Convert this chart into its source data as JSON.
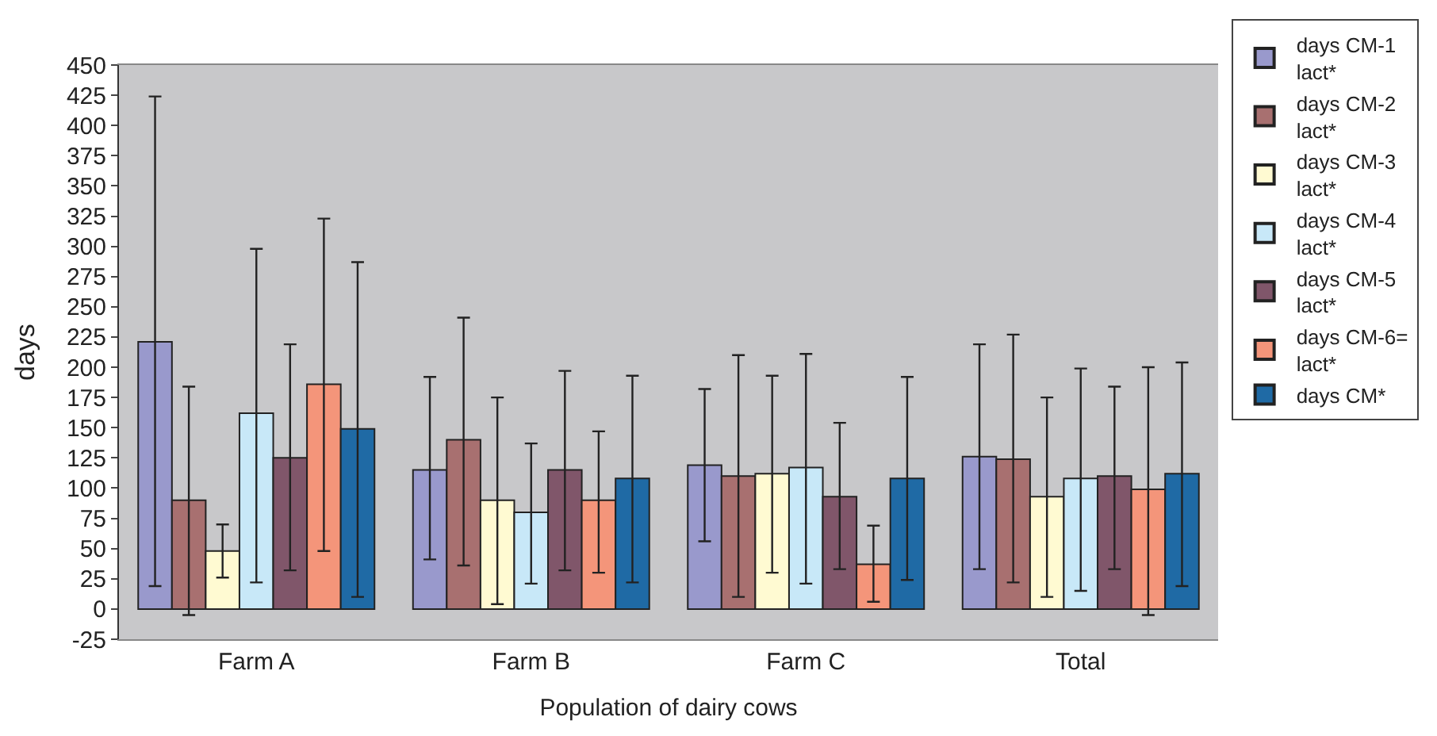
{
  "chart_data": {
    "type": "bar",
    "xlabel": "Population of dairy cows",
    "ylabel": "days",
    "categories": [
      "Farm A",
      "Farm B",
      "Farm C",
      "Total"
    ],
    "ylim": [
      -25,
      450
    ],
    "yticks": [
      -25,
      0,
      25,
      50,
      75,
      100,
      125,
      150,
      175,
      200,
      225,
      250,
      275,
      300,
      325,
      350,
      375,
      400,
      425,
      450
    ],
    "grid": false,
    "legend": "right",
    "series": [
      {
        "name": "days CM-1 lact*",
        "color": "#9999cc",
        "values": [
          221,
          115,
          119,
          126
        ],
        "errors": [
          [
            19,
            424
          ],
          [
            41,
            192
          ],
          [
            56,
            182
          ],
          [
            33,
            219
          ]
        ]
      },
      {
        "name": "days CM-2 lact*",
        "color": "#a87070",
        "values": [
          90,
          140,
          110,
          124
        ],
        "errors": [
          [
            -5,
            184
          ],
          [
            36,
            241
          ],
          [
            10,
            210
          ],
          [
            22,
            227
          ]
        ]
      },
      {
        "name": "days CM-3 lact*",
        "color": "#fffad2",
        "values": [
          48,
          90,
          112,
          93
        ],
        "errors": [
          [
            26,
            70
          ],
          [
            4,
            175
          ],
          [
            30,
            193
          ],
          [
            10,
            175
          ]
        ]
      },
      {
        "name": "days CM-4 lact*",
        "color": "#c8e8f8",
        "values": [
          162,
          80,
          117,
          108
        ],
        "errors": [
          [
            22,
            298
          ],
          [
            21,
            137
          ],
          [
            21,
            211
          ],
          [
            15,
            199
          ]
        ]
      },
      {
        "name": "days CM-5 lact*",
        "color": "#80566a",
        "values": [
          125,
          115,
          93,
          110
        ],
        "errors": [
          [
            32,
            219
          ],
          [
            32,
            197
          ],
          [
            33,
            154
          ],
          [
            33,
            184
          ]
        ]
      },
      {
        "name": "days CM-6= lact*",
        "color": "#f4957a",
        "values": [
          186,
          90,
          37,
          99
        ],
        "errors": [
          [
            48,
            323
          ],
          [
            30,
            147
          ],
          [
            6,
            69
          ],
          [
            -5,
            200
          ]
        ]
      },
      {
        "name": "days CM*",
        "color": "#1f6aa5",
        "values": [
          149,
          108,
          108,
          112
        ],
        "errors": [
          [
            10,
            287
          ],
          [
            22,
            193
          ],
          [
            24,
            192
          ],
          [
            19,
            204
          ]
        ]
      }
    ]
  }
}
